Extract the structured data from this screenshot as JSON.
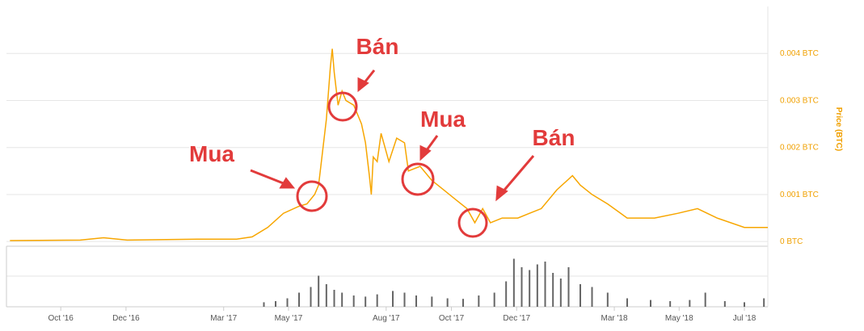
{
  "chart_data": {
    "type": "line",
    "y_label": "Price (BTC)",
    "color": "#f7a600",
    "x": [
      2016.62,
      2016.8,
      2016.86,
      2016.92,
      2017.1,
      2017.2,
      2017.24,
      2017.28,
      2017.32,
      2017.36,
      2017.38,
      2017.4,
      2017.41,
      2017.43,
      2017.44,
      2017.445,
      2017.45,
      2017.46,
      2017.47,
      2017.48,
      2017.5,
      2017.52,
      2017.53,
      2017.54,
      2017.545,
      2017.55,
      2017.56,
      2017.57,
      2017.59,
      2017.61,
      2017.63,
      2017.64,
      2017.67,
      2017.7,
      2017.73,
      2017.76,
      2017.79,
      2017.81,
      2017.83,
      2017.85,
      2017.88,
      2017.92,
      2017.95,
      2017.98,
      2018.02,
      2018.06,
      2018.08,
      2018.11,
      2018.15,
      2018.2,
      2018.27,
      2018.33,
      2018.38,
      2018.43,
      2018.5,
      2018.54,
      2018.56
    ],
    "values": [
      2e-05,
      3e-05,
      8e-05,
      3e-05,
      5e-05,
      5e-05,
      0.0001,
      0.0003,
      0.0006,
      0.00075,
      0.0008,
      0.001,
      0.0012,
      0.0026,
      0.0037,
      0.0041,
      0.0036,
      0.0029,
      0.0032,
      0.003,
      0.0029,
      0.0025,
      0.0021,
      0.0014,
      0.001,
      0.0018,
      0.0017,
      0.0023,
      0.0017,
      0.0022,
      0.0021,
      0.0015,
      0.0016,
      0.0013,
      0.0011,
      0.0009,
      0.0007,
      0.0004,
      0.0007,
      0.0004,
      0.0005,
      0.0005,
      0.0006,
      0.0007,
      0.0011,
      0.0014,
      0.0012,
      0.001,
      0.0008,
      0.0005,
      0.0005,
      0.0006,
      0.0007,
      0.0005,
      0.0003,
      0.0003,
      0.0003
    ],
    "xlim": [
      2016.611,
      2018.56
    ],
    "ylim": [
      -0.0001,
      0.005
    ],
    "yticks": [
      {
        "value": 0,
        "label": "0 BTC"
      },
      {
        "value": 0.001,
        "label": "0.001 BTC"
      },
      {
        "value": 0.002,
        "label": "0.002 BTC"
      },
      {
        "value": 0.003,
        "label": "0.003 BTC"
      },
      {
        "value": 0.004,
        "label": "0.004 BTC"
      }
    ],
    "xticks": [
      {
        "value": 2016.75,
        "label": "Oct '16"
      },
      {
        "value": 2016.917,
        "label": "Dec '16"
      },
      {
        "value": 2017.167,
        "label": "Mar '17"
      },
      {
        "value": 2017.333,
        "label": "May '17"
      },
      {
        "value": 2017.583,
        "label": "Aug '17"
      },
      {
        "value": 2017.75,
        "label": "Oct '17"
      },
      {
        "value": 2017.917,
        "label": "Dec '17"
      },
      {
        "value": 2018.167,
        "label": "Mar '18"
      },
      {
        "value": 2018.333,
        "label": "May '18"
      },
      {
        "value": 2018.5,
        "label": "Jul '18"
      }
    ],
    "grid": true,
    "volume": {
      "color": "#666666",
      "ylim": [
        0,
        100
      ],
      "x": [
        2017.27,
        2017.3,
        2017.33,
        2017.36,
        2017.39,
        2017.41,
        2017.43,
        2017.45,
        2017.47,
        2017.5,
        2017.53,
        2017.56,
        2017.6,
        2017.63,
        2017.66,
        2017.7,
        2017.74,
        2017.78,
        2017.82,
        2017.86,
        2017.89,
        2017.91,
        2017.93,
        2017.95,
        2017.97,
        2017.99,
        2018.01,
        2018.03,
        2018.05,
        2018.08,
        2018.11,
        2018.15,
        2018.2,
        2018.26,
        2018.31,
        2018.36,
        2018.4,
        2018.45,
        2018.5,
        2018.55
      ],
      "values": [
        8,
        10,
        15,
        25,
        35,
        55,
        40,
        30,
        25,
        20,
        18,
        22,
        28,
        25,
        20,
        18,
        15,
        14,
        20,
        25,
        45,
        85,
        70,
        65,
        75,
        80,
        60,
        50,
        70,
        40,
        35,
        25,
        15,
        12,
        10,
        12,
        25,
        10,
        8,
        15
      ]
    },
    "annotations": [
      {
        "text": "Mua"
      },
      {
        "text": "Bán"
      },
      {
        "text": "Mua"
      },
      {
        "text": "Bán"
      }
    ]
  }
}
